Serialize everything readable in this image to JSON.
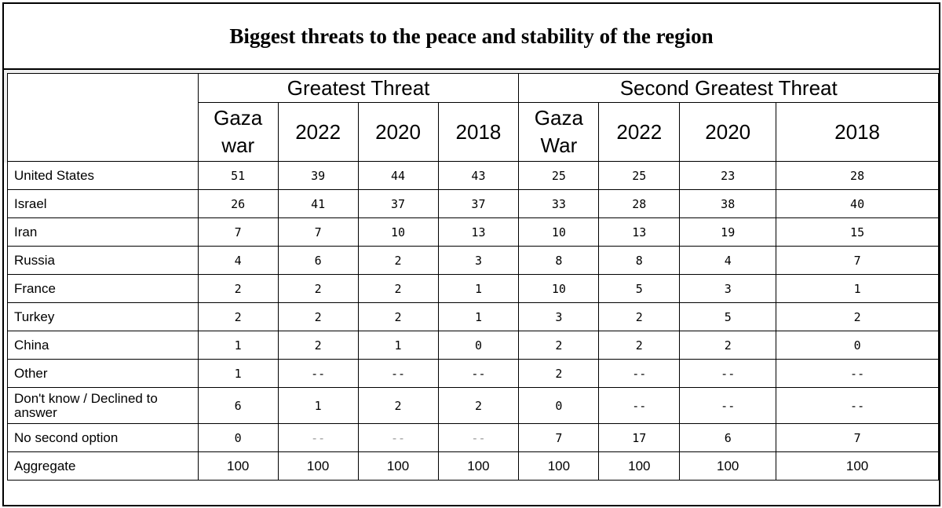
{
  "title": "Biggest threats to the peace and stability of the region",
  "header": {
    "group_1": "Greatest Threat",
    "group_2": "Second Greatest Threat",
    "columns": [
      "Gaza\nwar",
      "2022",
      "2020",
      "2018",
      "Gaza\nWar",
      "2022",
      "2020",
      "2018"
    ]
  },
  "rows": [
    {
      "label": "United States",
      "values": [
        "51",
        "39",
        "44",
        "43",
        "25",
        "25",
        "23",
        "28"
      ]
    },
    {
      "label": "Israel",
      "values": [
        "26",
        "41",
        "37",
        "37",
        "33",
        "28",
        "38",
        "40"
      ]
    },
    {
      "label": "Iran",
      "values": [
        "7",
        "7",
        "10",
        "13",
        "10",
        "13",
        "19",
        "15"
      ]
    },
    {
      "label": "Russia",
      "values": [
        "4",
        "6",
        "2",
        "3",
        "8",
        "8",
        "4",
        "7"
      ]
    },
    {
      "label": "France",
      "values": [
        "2",
        "2",
        "2",
        "1",
        "10",
        "5",
        "3",
        "1"
      ]
    },
    {
      "label": "Turkey",
      "values": [
        "2",
        "2",
        "2",
        "1",
        "3",
        "2",
        "5",
        "2"
      ]
    },
    {
      "label": "China",
      "values": [
        "1",
        "2",
        "1",
        "0",
        "2",
        "2",
        "2",
        "0"
      ]
    },
    {
      "label": "Other",
      "values": [
        "1",
        "--",
        "--",
        "--",
        "2",
        "--",
        "--",
        "--"
      ]
    },
    {
      "label": "Don't know / Declined to answer",
      "values": [
        "6",
        "1",
        "2",
        "2",
        "0",
        "--",
        "--",
        "--"
      ]
    },
    {
      "label": "No second option",
      "values": [
        "0",
        "--",
        "--",
        "--",
        "7",
        "17",
        "6",
        "7"
      ]
    },
    {
      "label": "Aggregate",
      "values": [
        "100",
        "100",
        "100",
        "100",
        "100",
        "100",
        "100",
        "100"
      ]
    }
  ]
}
